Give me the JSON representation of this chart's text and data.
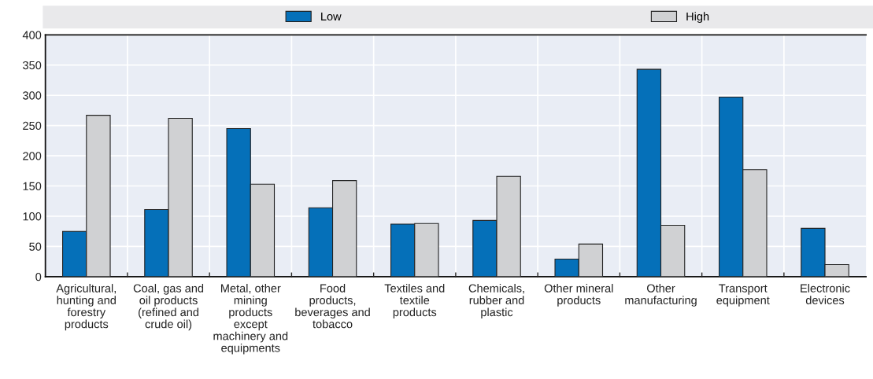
{
  "chart_data": {
    "type": "bar",
    "categories": [
      "Agricultural, hunting and forestry products",
      "Coal, gas and oil products (refined and crude oil)",
      "Metal, other mining products except machinery and equipments",
      "Food products, beverages and tobacco",
      "Textiles and textile products",
      "Chemicals, rubber and plastic",
      "Other mineral products",
      "Other manufacturing",
      "Transport equipment",
      "Electronic devices"
    ],
    "series": [
      {
        "name": "Low",
        "color": "#0570b9",
        "values": [
          75,
          111,
          245,
          114,
          87,
          93,
          29,
          343,
          297,
          80
        ]
      },
      {
        "name": "High",
        "color": "#d0d1d3",
        "values": [
          267,
          262,
          153,
          159,
          88,
          166,
          54,
          85,
          177,
          20
        ]
      }
    ],
    "ylim": [
      0,
      400
    ],
    "yticks": [
      0,
      50,
      100,
      150,
      200,
      250,
      300,
      350,
      400
    ],
    "grid": true,
    "legend": "top"
  }
}
